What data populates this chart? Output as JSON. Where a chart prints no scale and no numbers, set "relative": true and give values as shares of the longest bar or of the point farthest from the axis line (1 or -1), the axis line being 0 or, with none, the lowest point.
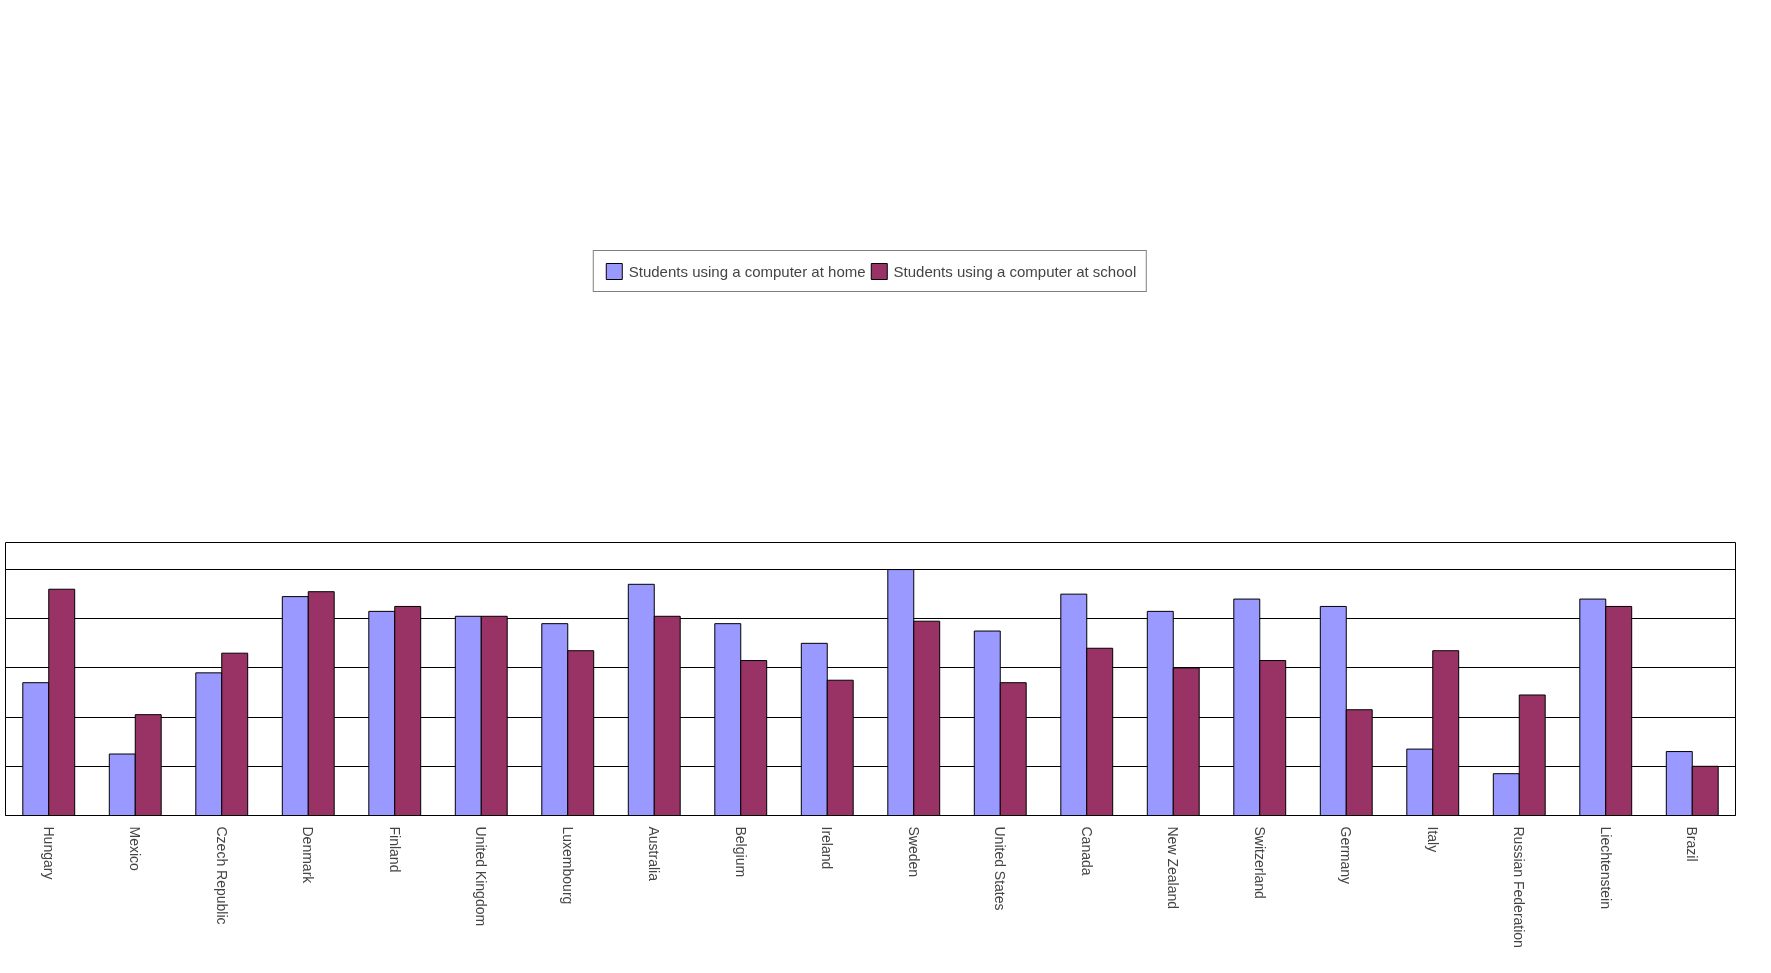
{
  "chart_data": {
    "type": "bar",
    "relative": true,
    "grid": "y",
    "legend": "top",
    "categories": [
      "Hungary",
      "Mexico",
      "Czech Republic",
      "Denmark",
      "Finland",
      "United Kingdom",
      "Luxembourg",
      "Australia",
      "Belgium",
      "Ireland",
      "Sweden",
      "United States",
      "Canada",
      "New Zealand",
      "Switzerland",
      "Germany",
      "Italy",
      "Russian Federation",
      "Liechtenstein",
      "Brazil"
    ],
    "series": [
      {
        "name": "Students using a computer at home",
        "color": "#9999ff",
        "values": [
          0.54,
          0.25,
          0.58,
          0.89,
          0.83,
          0.81,
          0.78,
          0.94,
          0.78,
          0.7,
          1,
          0.75,
          0.9,
          0.83,
          0.88,
          0.85,
          0.27,
          0.17,
          0.88,
          0.26
        ]
      },
      {
        "name": "Students using a computer at school",
        "color": "#993366",
        "values": [
          0.92,
          0.41,
          0.66,
          0.91,
          0.85,
          0.81,
          0.67,
          0.81,
          0.63,
          0.55,
          0.79,
          0.54,
          0.68,
          0.6,
          0.63,
          0.43,
          0.67,
          0.49,
          0.85,
          0.2
        ]
      }
    ]
  }
}
